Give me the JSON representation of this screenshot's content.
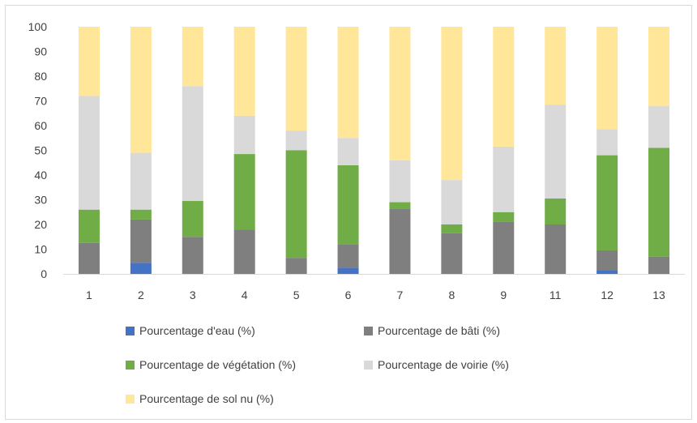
{
  "chart_data": {
    "type": "bar",
    "stacked": true,
    "categories": [
      "1",
      "2",
      "3",
      "4",
      "5",
      "6",
      "7",
      "8",
      "9",
      "11",
      "12",
      "13"
    ],
    "ylim": [
      0,
      100
    ],
    "yticks": [
      0,
      10,
      20,
      30,
      40,
      50,
      60,
      70,
      80,
      90,
      100
    ],
    "grid": false,
    "legend_placement": "bottom",
    "series": [
      {
        "name": "Pourcentage d'eau (%)",
        "color": "#4472c4",
        "values": [
          0,
          4.5,
          0,
          0,
          0,
          2.5,
          0,
          0,
          0,
          0,
          1.5,
          0
        ]
      },
      {
        "name": "Pourcentage de bâti (%)",
        "color": "#7f7f7f",
        "values": [
          12.5,
          17.5,
          15,
          18,
          6.5,
          9.5,
          26.5,
          16.5,
          21,
          20,
          8,
          7
        ]
      },
      {
        "name": "Pourcentage de végétation (%)",
        "color": "#70ad47",
        "values": [
          13.5,
          4,
          14.5,
          30.5,
          43.5,
          32,
          2.5,
          3.5,
          4,
          10.5,
          38.5,
          44
        ]
      },
      {
        "name": "Pourcentage de voirie (%)",
        "color": "#d9d9d9",
        "values": [
          46,
          23,
          46.5,
          15.5,
          8,
          11,
          17,
          18,
          26.5,
          38,
          10.5,
          17
        ]
      },
      {
        "name": "Pourcentage de sol nu (%)",
        "color": "#ffe699",
        "values": [
          28,
          51,
          24,
          36,
          42,
          45,
          54,
          62,
          48.5,
          31.5,
          41.5,
          32
        ]
      }
    ]
  }
}
